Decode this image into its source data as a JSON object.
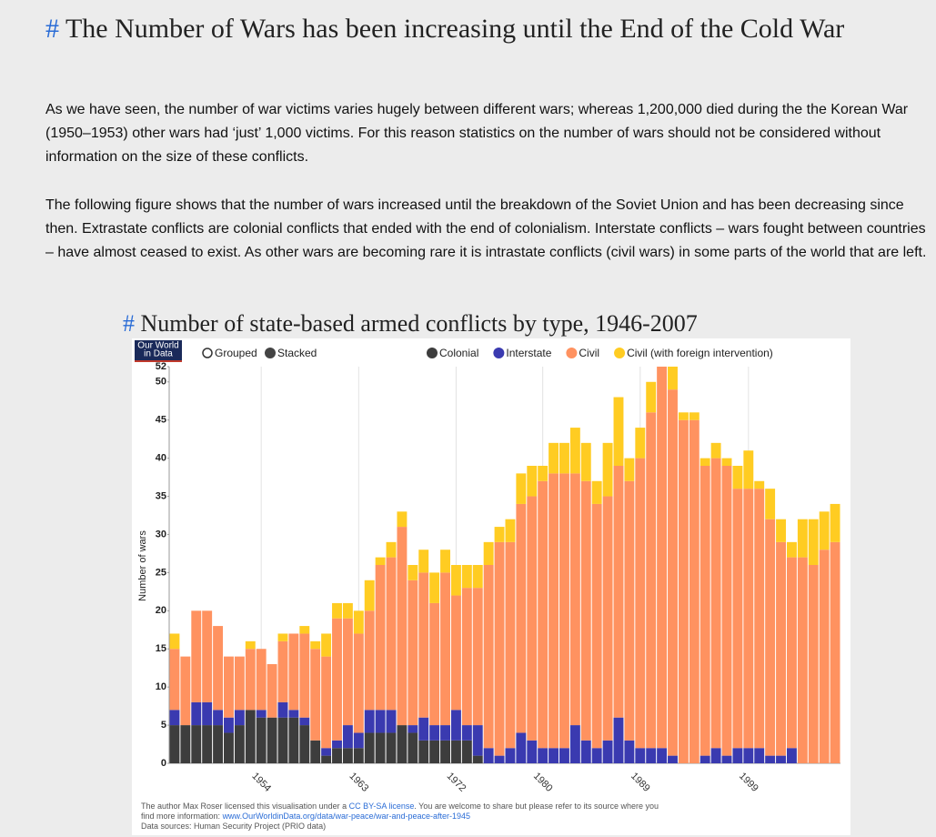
{
  "header": {
    "anchor": "#",
    "title": "The Number of Wars has been increasing until the End of the Cold War"
  },
  "paragraphs": [
    "As we have seen, the number of war victims varies hugely between different wars; whereas 1,200,000 died during the the Korean War (1950–1953) other wars had ‘just’ 1,000 victims. For this reason statistics on the number of wars should not be considered without information on the size of these conflicts.",
    "The following figure shows that the number of wars increased until the breakdown of the Soviet Union and has been decreasing since then. Extrastate conflicts are colonial conflicts that ended with the end of colonialism. Interstate conflicts – wars fought between countries – have almost ceased to exist. As other wars are becoming rare it is intrastate conflicts (civil wars) in some parts of the world that are left."
  ],
  "chart_data": {
    "type": "stacked_bar",
    "title_anchor": "#",
    "title": "Number of state-based armed conflicts by type, 1946-2007",
    "logo": [
      "Our World",
      "in Data"
    ],
    "controls": [
      "Grouped",
      "Stacked"
    ],
    "ylabel": "Number of wars",
    "ylim": [
      0,
      52
    ],
    "yticks": [
      0,
      5,
      10,
      15,
      20,
      25,
      30,
      35,
      40,
      45,
      50,
      52
    ],
    "categories": [
      null,
      null,
      null,
      null,
      null,
      null,
      null,
      null,
      "1954",
      null,
      null,
      null,
      null,
      null,
      null,
      null,
      null,
      "1963",
      null,
      null,
      null,
      null,
      null,
      null,
      null,
      null,
      "1972",
      null,
      null,
      null,
      null,
      null,
      null,
      null,
      "1980",
      null,
      null,
      null,
      null,
      null,
      null,
      null,
      null,
      "1989",
      null,
      null,
      null,
      null,
      null,
      null,
      null,
      null,
      null,
      "1999",
      null,
      null,
      null,
      null,
      null,
      null,
      null,
      null
    ],
    "series": [
      {
        "name": "Colonial",
        "color": "#3d3d3d",
        "values": [
          5,
          5,
          5,
          5,
          5,
          4,
          5,
          7,
          6,
          6,
          6,
          6,
          5,
          3,
          1,
          2,
          2,
          2,
          4,
          4,
          4,
          5,
          4,
          3,
          3,
          3,
          3,
          3,
          1,
          0,
          0,
          0,
          0,
          0,
          0,
          0,
          0,
          0,
          0,
          0,
          0,
          0,
          0,
          0,
          0,
          0,
          0,
          0,
          0,
          0,
          0,
          0,
          0,
          0,
          0,
          0,
          0,
          0,
          0,
          0,
          0,
          0
        ]
      },
      {
        "name": "Interstate",
        "color": "#3a3ab0",
        "values": [
          2,
          0,
          3,
          3,
          2,
          2,
          2,
          0,
          1,
          0,
          2,
          1,
          1,
          0,
          1,
          1,
          3,
          2,
          3,
          3,
          3,
          0,
          1,
          3,
          2,
          2,
          4,
          2,
          4,
          2,
          1,
          2,
          4,
          3,
          2,
          2,
          2,
          5,
          3,
          2,
          3,
          6,
          3,
          2,
          2,
          2,
          1,
          0,
          0,
          1,
          2,
          1,
          2,
          2,
          2,
          1,
          1,
          2,
          0,
          0,
          0,
          0
        ]
      },
      {
        "name": "Civil",
        "color": "#ff9260",
        "values": [
          8,
          9,
          12,
          12,
          11,
          8,
          7,
          8,
          8,
          7,
          8,
          10,
          11,
          12,
          12,
          16,
          14,
          13,
          13,
          19,
          20,
          26,
          19,
          19,
          16,
          20,
          15,
          18,
          18,
          24,
          28,
          27,
          30,
          32,
          35,
          36,
          36,
          33,
          34,
          32,
          32,
          33,
          34,
          38,
          44,
          50,
          48,
          45,
          45,
          38,
          38,
          38,
          34,
          34,
          34,
          31,
          28,
          25,
          27,
          26,
          28,
          29
        ]
      },
      {
        "name": "Civil (with foreign intervention)",
        "color": "#ffcc22",
        "values": [
          2,
          0,
          0,
          0,
          0,
          0,
          0,
          1,
          0,
          0,
          1,
          0,
          1,
          1,
          3,
          2,
          2,
          3,
          4,
          1,
          2,
          2,
          2,
          3,
          4,
          3,
          4,
          3,
          3,
          3,
          2,
          3,
          4,
          4,
          2,
          4,
          4,
          6,
          5,
          3,
          7,
          9,
          3,
          4,
          4,
          0,
          3,
          1,
          1,
          1,
          2,
          1,
          3,
          5,
          1,
          4,
          3,
          2,
          5,
          6,
          5,
          5
        ]
      }
    ],
    "footer": {
      "license_pre": "The author Max Roser licensed this visualisation under a",
      "license_link": "CC BY-SA license",
      "license_post": ". You are welcome to share but please refer to its source where you",
      "info_pre": "find more information:",
      "info_link": "www.OurWorldinData.org/data/war-peace/war-and-peace-after-1945",
      "sources": "Data sources: Human Security Project (PRIO data)"
    }
  }
}
